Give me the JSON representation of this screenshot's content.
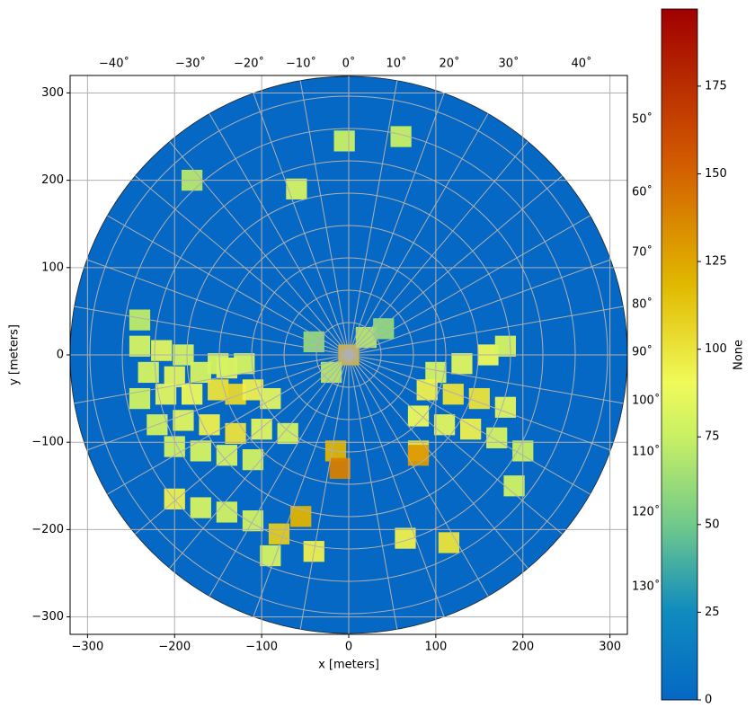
{
  "chart_data": {
    "type": "radar-ppi",
    "x_label": "x [meters]",
    "y_label": "y [meters]",
    "colorbar_label": "None",
    "xlim": [
      -320,
      320
    ],
    "ylim": [
      -320,
      320
    ],
    "xticks": [
      {
        "value": -300,
        "label": "−300"
      },
      {
        "value": -200,
        "label": "−200"
      },
      {
        "value": -100,
        "label": "−100"
      },
      0,
      100,
      200,
      300
    ],
    "yticks": [
      {
        "value": -300,
        "label": "−300"
      },
      {
        "value": -200,
        "label": "−200"
      },
      {
        "value": -100,
        "label": "−100"
      },
      0,
      100,
      200,
      300
    ],
    "clim": [
      0,
      197
    ],
    "cticks": [
      0,
      25,
      50,
      75,
      100,
      125,
      150,
      175
    ],
    "top_labels": [
      "−40˚",
      "−30˚",
      "−20˚",
      "−10˚",
      "0˚",
      "10˚",
      "20˚",
      "30˚",
      "40˚"
    ],
    "right_labels": [
      "50˚",
      "60˚",
      "70˚",
      "80˚",
      "90˚",
      "100˚",
      "110˚",
      "120˚",
      "130˚"
    ],
    "range_max": 320,
    "grid": true,
    "x": [
      -240,
      -215,
      -190,
      -230,
      -200,
      -170,
      -140,
      -120,
      -240,
      -210,
      -180,
      -150,
      -130,
      -110,
      -90,
      -220,
      -190,
      -160,
      -130,
      -100,
      -70,
      -200,
      -170,
      -140,
      -110,
      -150,
      100,
      130,
      160,
      180,
      90,
      120,
      150,
      180,
      80,
      110,
      140,
      170,
      80,
      200,
      -200,
      -170,
      -140,
      -110,
      -80,
      -55,
      -40,
      -90,
      65,
      115,
      190,
      0,
      20,
      -20,
      40,
      -40,
      -15,
      -10,
      80,
      -180,
      -60,
      60,
      -5,
      -240
    ],
    "y": [
      10,
      5,
      0,
      -20,
      -25,
      -20,
      -15,
      -10,
      -50,
      -45,
      -45,
      -40,
      -45,
      -40,
      -50,
      -80,
      -75,
      -80,
      -90,
      -85,
      -90,
      -105,
      -110,
      -115,
      -120,
      -10,
      -20,
      -10,
      0,
      10,
      -40,
      -45,
      -50,
      -60,
      -70,
      -80,
      -85,
      -95,
      -110,
      -110,
      -165,
      -175,
      -180,
      -190,
      -205,
      -185,
      -225,
      -230,
      -210,
      -215,
      -150,
      0,
      20,
      -20,
      30,
      15,
      -110,
      -130,
      -115,
      200,
      190,
      250,
      245,
      40
    ],
    "values": [
      80,
      85,
      80,
      80,
      85,
      80,
      85,
      80,
      78,
      85,
      90,
      100,
      105,
      95,
      85,
      78,
      85,
      95,
      100,
      85,
      80,
      78,
      80,
      80,
      78,
      80,
      80,
      85,
      90,
      80,
      95,
      100,
      100,
      85,
      90,
      85,
      95,
      80,
      100,
      75,
      95,
      80,
      78,
      78,
      110,
      120,
      95,
      80,
      95,
      100,
      78,
      120,
      70,
      70,
      60,
      60,
      120,
      140,
      130,
      70,
      80,
      75,
      75,
      72
    ]
  }
}
